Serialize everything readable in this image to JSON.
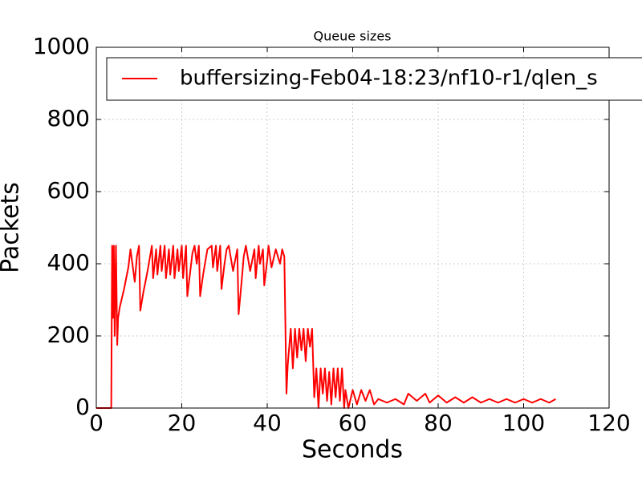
{
  "chart_data": {
    "type": "line",
    "title": "Queue sizes",
    "xlabel": "Seconds",
    "ylabel": "Packets",
    "x": [
      0,
      3.5,
      3.7,
      3.9,
      4.1,
      4.3,
      4.6,
      4.9,
      5.1,
      5.5,
      6.5,
      7.5,
      8,
      9,
      9.5,
      10,
      10.3,
      11,
      12,
      13,
      13.3,
      14,
      14.3,
      15,
      15.3,
      16,
      16.3,
      17,
      17.3,
      18,
      18.3,
      19,
      19.3,
      20,
      20.3,
      21,
      21.3,
      22,
      22.5,
      23,
      23.5,
      24,
      24.3,
      25,
      26,
      27,
      27.3,
      28,
      28.3,
      29,
      29.3,
      30,
      30.5,
      31,
      32,
      33,
      33.3,
      34,
      34.5,
      35,
      36,
      37,
      37.3,
      38,
      38.3,
      39,
      39.3,
      40,
      40.3,
      41,
      42,
      43,
      43.5,
      44,
      44.5,
      44.8,
      45.5,
      46,
      46.5,
      47,
      47.5,
      48,
      48.5,
      49,
      49.5,
      50,
      50.5,
      51,
      51.5,
      52,
      52.5,
      53,
      53.5,
      54,
      54.5,
      55,
      55.5,
      56,
      56.5,
      57,
      57.5,
      58,
      58.3,
      59,
      60,
      61,
      62,
      63,
      64,
      65,
      66,
      68,
      70,
      72,
      73,
      75,
      77,
      78,
      80,
      82,
      84,
      86,
      88,
      90,
      92,
      94,
      96,
      98,
      100,
      102,
      104,
      106,
      107.5
    ],
    "series": [
      {
        "name": "buffersizing-Feb04-18:23/nf10-r1/qlen_s",
        "color": "#ff0000",
        "values": [
          0,
          0,
          450,
          250,
          450,
          200,
          450,
          175,
          250,
          280,
          330,
          390,
          440,
          350,
          420,
          450,
          270,
          320,
          380,
          450,
          360,
          440,
          370,
          450,
          380,
          450,
          360,
          440,
          370,
          450,
          360,
          440,
          380,
          450,
          360,
          450,
          310,
          380,
          430,
          450,
          400,
          450,
          310,
          370,
          440,
          450,
          390,
          450,
          380,
          450,
          330,
          400,
          440,
          450,
          380,
          440,
          260,
          350,
          420,
          450,
          380,
          440,
          360,
          450,
          400,
          440,
          340,
          410,
          450,
          390,
          440,
          400,
          440,
          420,
          40,
          120,
          220,
          110,
          220,
          140,
          220,
          160,
          220,
          130,
          220,
          170,
          220,
          30,
          110,
          0,
          110,
          40,
          110,
          20,
          100,
          10,
          110,
          30,
          110,
          20,
          110,
          0,
          50,
          0,
          50,
          10,
          50,
          20,
          50,
          10,
          25,
          15,
          25,
          10,
          40,
          20,
          40,
          15,
          35,
          15,
          30,
          15,
          30,
          15,
          25,
          15,
          25,
          15,
          25,
          15,
          25,
          15,
          25
        ]
      }
    ],
    "xlim": [
      0,
      120
    ],
    "xticks": [
      0,
      20,
      40,
      60,
      80,
      100,
      120
    ],
    "ylim": [
      0,
      1000
    ],
    "yticks": [
      0,
      200,
      400,
      600,
      800,
      1000
    ],
    "grid": true,
    "legend": "upper left"
  }
}
